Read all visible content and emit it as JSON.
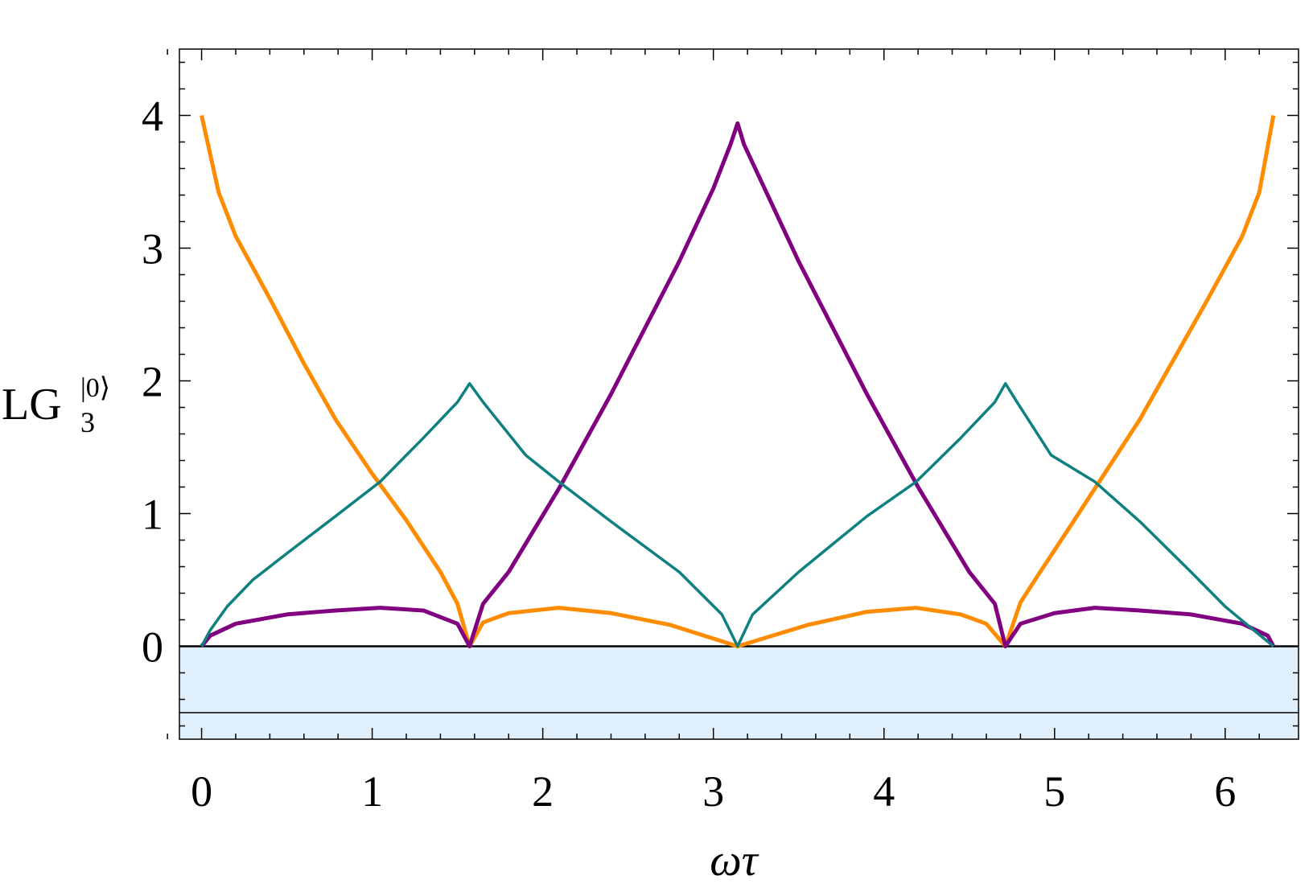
{
  "chart_data": {
    "type": "line",
    "title": "",
    "xlabel": "ωτ",
    "ylabel": {
      "main": "LG",
      "subscript": "3",
      "superscript": "|0⟩"
    },
    "xlim": [
      -0.13,
      6.43
    ],
    "ylim": [
      -0.7,
      4.5
    ],
    "x_ticks": [
      0,
      1,
      2,
      3,
      4,
      5,
      6
    ],
    "y_ticks": [
      0,
      1,
      2,
      3,
      4
    ],
    "grid": false,
    "legend": "none",
    "shaded_region": {
      "y_from": -0.7,
      "y_to": 0,
      "color": "#dff0fc"
    },
    "reference_lines": [
      {
        "y": 0,
        "color": "#000000",
        "width": "thick"
      },
      {
        "y": -0.5,
        "color": "#000000",
        "width": "thin"
      }
    ],
    "series": [
      {
        "color": "#ff8c00",
        "x": [
          0,
          0.1,
          0.2,
          0.4,
          0.6,
          0.785,
          1.0,
          1.2,
          1.4,
          1.5,
          1.571,
          1.65,
          1.8,
          2.094,
          2.4,
          2.75,
          3.142,
          3.55,
          3.9,
          4.189,
          4.45,
          4.6,
          4.712,
          4.8,
          4.9,
          5.1,
          5.5,
          5.9,
          6.1,
          6.2,
          6.283
        ],
        "y": [
          4.0,
          3.42,
          3.09,
          2.62,
          2.13,
          1.71,
          1.3,
          0.95,
          0.56,
          0.32,
          0.0,
          0.18,
          0.25,
          0.29,
          0.25,
          0.16,
          0.0,
          0.16,
          0.26,
          0.29,
          0.24,
          0.17,
          0.0,
          0.33,
          0.53,
          0.92,
          1.71,
          2.62,
          3.09,
          3.42,
          4.0
        ]
      },
      {
        "color": "#800080",
        "x": [
          0,
          0.05,
          0.2,
          0.5,
          0.785,
          1.047,
          1.3,
          1.5,
          1.571,
          1.65,
          1.8,
          2.1,
          2.4,
          2.8,
          3.0,
          3.1,
          3.142,
          3.18,
          3.3,
          3.5,
          3.9,
          4.2,
          4.5,
          4.65,
          4.712,
          4.8,
          5.0,
          5.236,
          5.5,
          5.8,
          6.1,
          6.25,
          6.283
        ],
        "y": [
          0.0,
          0.08,
          0.17,
          0.24,
          0.27,
          0.29,
          0.27,
          0.17,
          0.0,
          0.32,
          0.56,
          1.2,
          1.9,
          2.9,
          3.45,
          3.78,
          3.94,
          3.78,
          3.45,
          2.9,
          1.9,
          1.2,
          0.56,
          0.32,
          0.0,
          0.17,
          0.25,
          0.29,
          0.27,
          0.24,
          0.17,
          0.08,
          0.0
        ]
      },
      {
        "color": "#0f8080",
        "x": [
          0,
          0.05,
          0.15,
          0.3,
          0.5,
          0.785,
          1.047,
          1.3,
          1.5,
          1.571,
          1.65,
          1.9,
          2.094,
          2.4,
          2.8,
          3.05,
          3.142,
          3.23,
          3.5,
          3.9,
          4.189,
          4.45,
          4.65,
          4.712,
          4.78,
          4.98,
          5.236,
          5.5,
          5.8,
          6.0,
          6.15,
          6.283
        ],
        "y": [
          0.0,
          0.12,
          0.3,
          0.5,
          0.7,
          0.98,
          1.24,
          1.57,
          1.84,
          1.98,
          1.84,
          1.44,
          1.24,
          0.94,
          0.56,
          0.24,
          0.0,
          0.24,
          0.56,
          0.98,
          1.24,
          1.57,
          1.84,
          1.98,
          1.84,
          1.44,
          1.24,
          0.94,
          0.56,
          0.3,
          0.14,
          0.0
        ]
      }
    ]
  }
}
